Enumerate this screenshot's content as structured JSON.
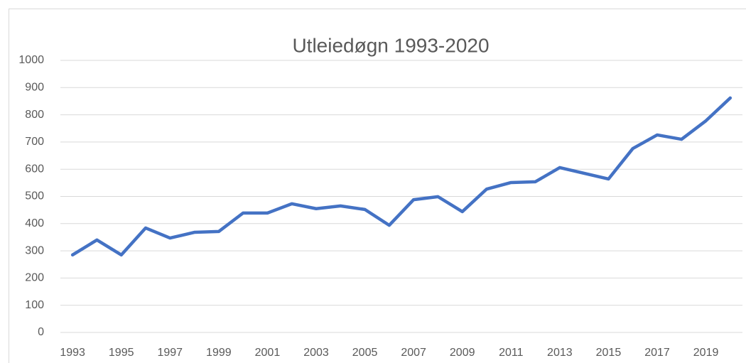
{
  "chart_data": {
    "type": "line",
    "title": "Utleiedøgn 1993-2020",
    "categories": [
      "1993",
      null,
      "1995",
      null,
      "1997",
      null,
      "1999",
      null,
      "2001",
      null,
      "2003",
      null,
      "2005",
      null,
      "2007",
      null,
      "2009",
      null,
      "2011",
      null,
      "2013",
      null,
      "2015",
      null,
      "2017",
      null,
      "2019",
      null
    ],
    "series": [
      {
        "name": "Utleiedøgn",
        "color": "#4472c4",
        "values": [
          285,
          340,
          285,
          384,
          347,
          368,
          371,
          439,
          439,
          473,
          455,
          465,
          452,
          394,
          488,
          499,
          444,
          527,
          551,
          554,
          606,
          585,
          564,
          676,
          726,
          710,
          778,
          862
        ]
      }
    ],
    "ylim": [
      0,
      1000
    ],
    "yticks": [
      0,
      100,
      200,
      300,
      400,
      500,
      600,
      700,
      800,
      900,
      1000
    ],
    "grid": true
  }
}
